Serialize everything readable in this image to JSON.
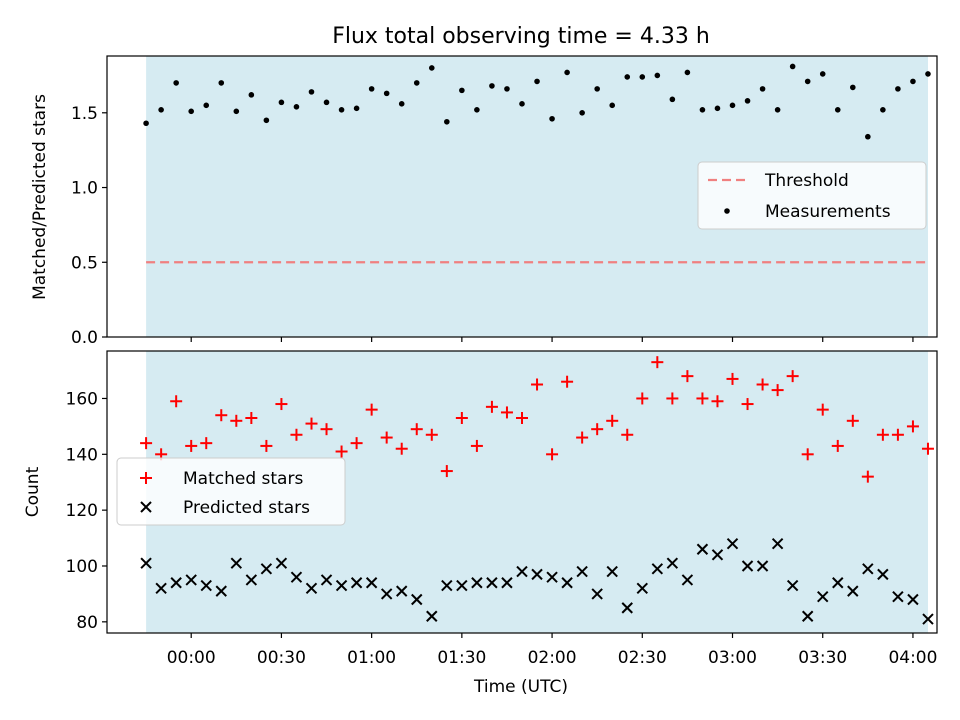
{
  "chart_data": {
    "type": "scatter",
    "title": "Flux total observing time = 4.33 h",
    "xlabel": "Time (UTC)",
    "x_ticks": [
      "00:00",
      "00:30",
      "01:00",
      "01:30",
      "02:00",
      "02:30",
      "03:00",
      "03:30",
      "04:00"
    ],
    "x_tick_minutes": [
      0,
      30,
      60,
      90,
      120,
      150,
      180,
      210,
      240
    ],
    "x_range_minutes": [
      -28,
      248
    ],
    "observing_window_minutes": [
      -15,
      245
    ],
    "colors": {
      "window": "#add8e6",
      "threshold": "#f08080",
      "measurements": "#000000",
      "matched": "#ff0000",
      "predicted": "#000000"
    },
    "panels": [
      {
        "ylabel": "Matched/Predicted stars",
        "ylim": [
          0,
          1.88
        ],
        "yticks": [
          0.0,
          0.5,
          1.0,
          1.5
        ],
        "ytick_labels": [
          "0.0",
          "0.5",
          "1.0",
          "1.5"
        ],
        "legend_position": "center-right",
        "threshold": {
          "name": "Threshold",
          "y": 0.5
        },
        "measurements": {
          "name": "Measurements",
          "x": [
            -15,
            -10,
            -5,
            0,
            5,
            10,
            15,
            20,
            25,
            30,
            35,
            40,
            45,
            50,
            55,
            60,
            65,
            70,
            75,
            80,
            85,
            90,
            95,
            100,
            105,
            110,
            115,
            120,
            125,
            130,
            135,
            140,
            145,
            150,
            155,
            160,
            165,
            170,
            175,
            180,
            185,
            190,
            195,
            200,
            205,
            210,
            215,
            220,
            225,
            230,
            235,
            240,
            245
          ],
          "y": [
            1.43,
            1.52,
            1.7,
            1.51,
            1.55,
            1.7,
            1.51,
            1.62,
            1.45,
            1.57,
            1.54,
            1.64,
            1.57,
            1.52,
            1.53,
            1.66,
            1.63,
            1.56,
            1.7,
            1.8,
            1.44,
            1.65,
            1.52,
            1.68,
            1.66,
            1.56,
            1.71,
            1.46,
            1.77,
            1.5,
            1.66,
            1.55,
            1.74,
            1.74,
            1.75,
            1.59,
            1.77,
            1.52,
            1.53,
            1.55,
            1.58,
            1.66,
            1.52,
            1.81,
            1.71,
            1.76,
            1.52,
            1.67,
            1.34,
            1.52,
            1.66,
            1.71,
            1.76
          ]
        }
      },
      {
        "ylabel": "Count",
        "ylim": [
          76,
          177
        ],
        "yticks": [
          80,
          100,
          120,
          140,
          160
        ],
        "ytick_labels": [
          "80",
          "100",
          "120",
          "140",
          "160"
        ],
        "legend_position": "center-left",
        "series": [
          {
            "name": "Matched stars",
            "marker": "+",
            "x": [
              -15,
              -10,
              -5,
              0,
              5,
              10,
              15,
              20,
              25,
              30,
              35,
              40,
              45,
              50,
              55,
              60,
              65,
              70,
              75,
              80,
              85,
              90,
              95,
              100,
              105,
              110,
              115,
              120,
              125,
              130,
              135,
              140,
              145,
              150,
              155,
              160,
              165,
              170,
              175,
              180,
              185,
              190,
              195,
              200,
              205,
              210,
              215,
              220,
              225,
              230,
              235,
              240,
              245
            ],
            "values": [
              144,
              140,
              159,
              143,
              144,
              154,
              152,
              153,
              143,
              158,
              147,
              151,
              149,
              141,
              144,
              156,
              146,
              142,
              149,
              147,
              134,
              153,
              143,
              157,
              155,
              153,
              165,
              140,
              166,
              146,
              149,
              152,
              147,
              160,
              173,
              160,
              168,
              160,
              159,
              167,
              158,
              165,
              163,
              168,
              140,
              156,
              143,
              152,
              132,
              147,
              147,
              150,
              142
            ]
          },
          {
            "name": "Predicted stars",
            "marker": "x",
            "x": [
              -15,
              -10,
              -5,
              0,
              5,
              10,
              15,
              20,
              25,
              30,
              35,
              40,
              45,
              50,
              55,
              60,
              65,
              70,
              75,
              80,
              85,
              90,
              95,
              100,
              105,
              110,
              115,
              120,
              125,
              130,
              135,
              140,
              145,
              150,
              155,
              160,
              165,
              170,
              175,
              180,
              185,
              190,
              195,
              200,
              205,
              210,
              215,
              220,
              225,
              230,
              235,
              240,
              245
            ],
            "values": [
              101,
              92,
              94,
              95,
              93,
              91,
              101,
              95,
              99,
              101,
              96,
              92,
              95,
              93,
              94,
              94,
              90,
              91,
              88,
              82,
              93,
              93,
              94,
              94,
              94,
              98,
              97,
              96,
              94,
              98,
              90,
              98,
              85,
              92,
              99,
              101,
              95,
              106,
              104,
              108,
              100,
              100,
              108,
              93,
              82,
              89,
              94,
              91,
              99,
              97,
              89,
              88,
              81
            ]
          }
        ]
      }
    ]
  }
}
